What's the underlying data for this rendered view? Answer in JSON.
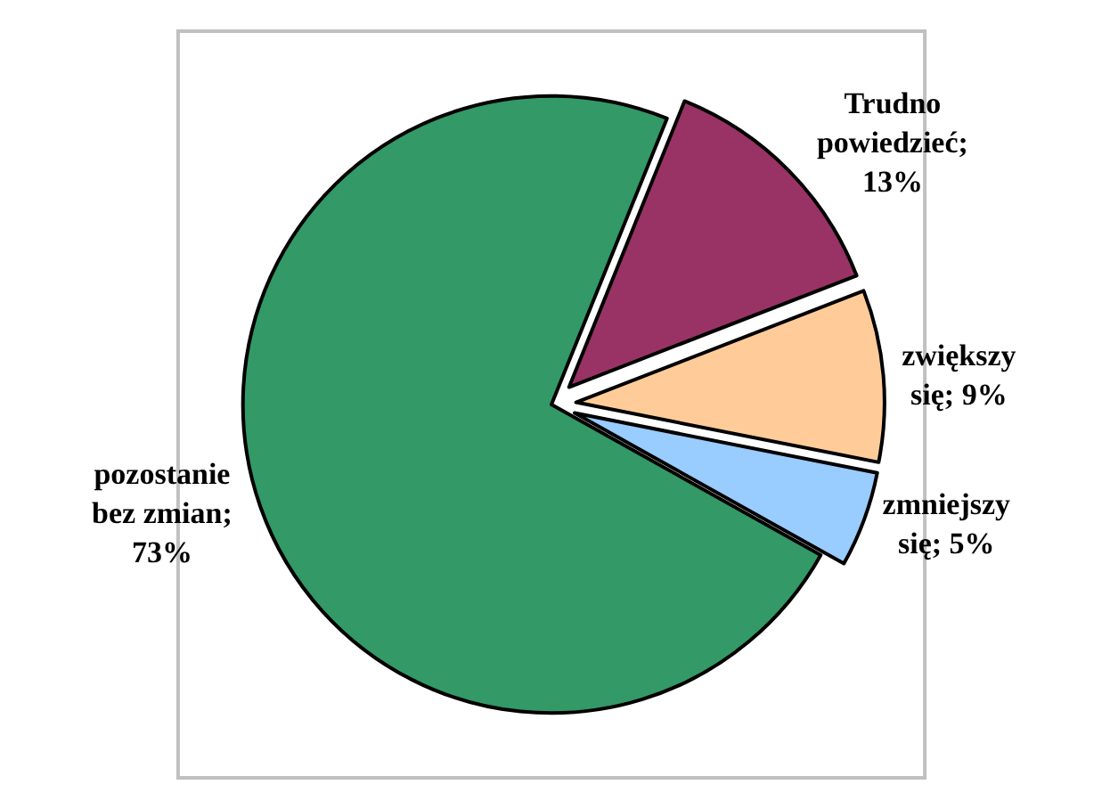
{
  "chart_data": {
    "type": "pie",
    "categories": [
      "Trudno powiedzieć; 13%",
      "zwiększy się; 9%",
      "zmniejszy się; 5%",
      "pozostanie bez zmian; 73%"
    ],
    "values": [
      13,
      9,
      5,
      73
    ],
    "colors": [
      "#993366",
      "#ffcc99",
      "#99ccff",
      "#339966"
    ],
    "legend": false
  }
}
